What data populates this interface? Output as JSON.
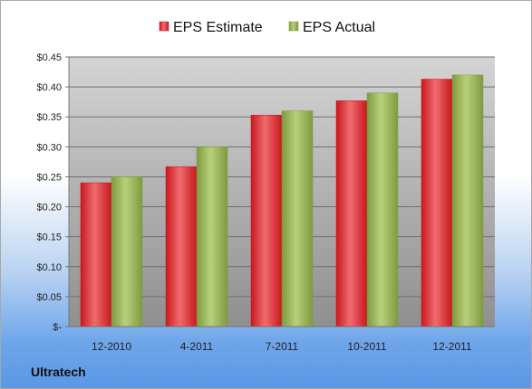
{
  "company": "Ultratech",
  "colors": {
    "estimate": "#c8181e",
    "estimate_light": "#f06b6e",
    "actual": "#7f9a3f",
    "actual_light": "#b9d07a",
    "plot_top": "#d4d4d4",
    "plot_bottom": "#8f8f8f"
  },
  "chart_data": {
    "type": "bar",
    "title": "",
    "xlabel": "",
    "ylabel": "",
    "categories": [
      "12-2010",
      "4-2011",
      "7-2011",
      "10-2011",
      "12-2011"
    ],
    "series": [
      {
        "name": "EPS Estimate",
        "values": [
          0.24,
          0.267,
          0.353,
          0.377,
          0.413
        ]
      },
      {
        "name": "EPS Actual",
        "values": [
          0.25,
          0.3,
          0.36,
          0.39,
          0.42
        ]
      }
    ],
    "ylim": [
      0,
      0.45
    ],
    "yticks": [
      0,
      0.05,
      0.1,
      0.15,
      0.2,
      0.25,
      0.3,
      0.35,
      0.4,
      0.45
    ],
    "ytick_labels": [
      "$-",
      "$0.05",
      "$0.10",
      "$0.15",
      "$0.20",
      "$0.25",
      "$0.30",
      "$0.35",
      "$0.40",
      "$0.45"
    ],
    "grid": true,
    "legend": "top"
  }
}
